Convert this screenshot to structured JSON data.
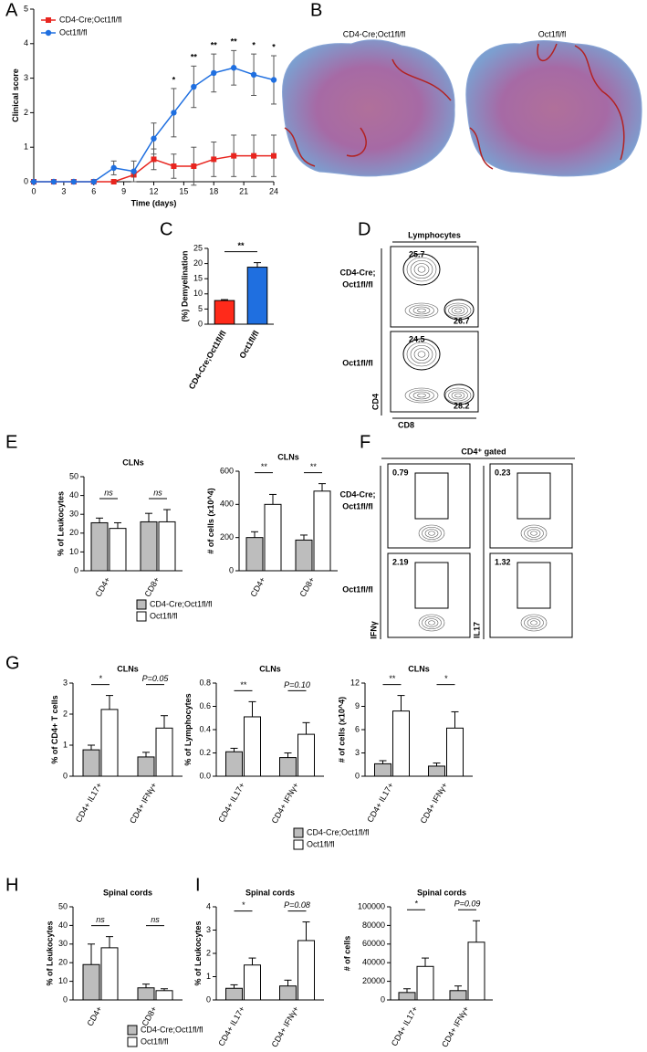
{
  "chart_data": [
    {
      "type": "line",
      "panel": "A",
      "x": [
        0,
        2,
        4,
        6,
        8,
        10,
        12,
        14,
        16,
        18,
        20,
        22,
        24
      ],
      "xlim": [
        0,
        24
      ],
      "xticks": [
        0,
        3,
        6,
        9,
        12,
        15,
        18,
        21,
        24
      ],
      "ylim": [
        0,
        5
      ],
      "yticks": [
        0,
        1,
        2,
        3,
        4,
        5
      ],
      "x_label": "Time (days)",
      "y_label": "Clinical score",
      "legend": "upper left",
      "series": [
        {
          "name": "CD4-Cre;Oct1fl/fl",
          "color": "#e8251f",
          "marker": "square",
          "values": [
            0,
            0,
            0,
            0,
            0,
            0.2,
            0.65,
            0.45,
            0.45,
            0.65,
            0.75,
            0.75,
            0.75
          ],
          "errors": [
            0,
            0,
            0,
            0,
            0,
            0.05,
            0.3,
            0.35,
            0.55,
            0.5,
            0.6,
            0.6,
            0.6
          ]
        },
        {
          "name": "Oct1fl/fl",
          "color": "#1f6fe0",
          "marker": "circle",
          "values": [
            0,
            0,
            0,
            0,
            0.4,
            0.3,
            1.25,
            2.0,
            2.75,
            3.15,
            3.3,
            3.1,
            2.95
          ],
          "errors": [
            0,
            0,
            0,
            0,
            0.2,
            0.3,
            0.45,
            0.7,
            0.6,
            0.55,
            0.5,
            0.6,
            0.7
          ]
        }
      ],
      "significance": [
        null,
        null,
        null,
        null,
        null,
        null,
        null,
        "*",
        "**",
        "**",
        "**",
        "*",
        "*"
      ]
    },
    {
      "type": "bar",
      "panel": "C",
      "categories": [
        "CD4-Cre;Oct1fl/fl",
        "Oct1fl/fl"
      ],
      "values": [
        7.8,
        18.8
      ],
      "errors": [
        0.3,
        1.5
      ],
      "colors": [
        "#ff2a1a",
        "#1f6fe0"
      ],
      "ylim": [
        0,
        25
      ],
      "yticks": [
        0,
        5,
        10,
        15,
        20,
        25
      ],
      "y_label": "(%) Demyelination",
      "significance": "**"
    },
    {
      "type": "bar",
      "panel": "E",
      "title": "CLNs",
      "categories": [
        "CD4+",
        "CD8+"
      ],
      "ylim": [
        0,
        50
      ],
      "yticks": [
        0,
        10,
        20,
        30,
        40,
        50
      ],
      "y_label": "% of Leukocytes",
      "significance": [
        "ns",
        "ns"
      ],
      "legend": true,
      "series": [
        {
          "name": "CD4-Cre;Oct1fl/fl",
          "color": "#bdbdbd",
          "values": [
            25.5,
            26
          ],
          "errors": [
            2.5,
            4.5
          ]
        },
        {
          "name": "Oct1fl/fl",
          "color": "#ffffff",
          "values": [
            22.5,
            26
          ],
          "errors": [
            3,
            6.5
          ]
        }
      ]
    },
    {
      "type": "bar",
      "title": "CLNs",
      "categories": [
        "CD4+",
        "CD8+"
      ],
      "ylim": [
        0,
        600
      ],
      "yticks": [
        0,
        200,
        400,
        600
      ],
      "y_label": "# of cells (x10^4)",
      "significance": [
        "**",
        "**"
      ],
      "series": [
        {
          "color": "#bdbdbd",
          "values": [
            200,
            185
          ],
          "errors": [
            35,
            30
          ]
        },
        {
          "color": "#ffffff",
          "values": [
            400,
            480
          ],
          "errors": [
            60,
            45
          ]
        }
      ]
    },
    {
      "type": "bar",
      "panel": "G",
      "title": "CLNs",
      "categories": [
        "CD4+ IL17+",
        "CD4+ IFNγ+"
      ],
      "ylim": [
        0,
        3
      ],
      "yticks": [
        0,
        1,
        2,
        3
      ],
      "y_label": "% of CD4+ T cells",
      "significance": [
        "*",
        "P=0.05"
      ],
      "series": [
        {
          "color": "#bdbdbd",
          "values": [
            0.85,
            0.62
          ],
          "errors": [
            0.15,
            0.15
          ]
        },
        {
          "color": "#ffffff",
          "values": [
            2.15,
            1.55
          ],
          "errors": [
            0.45,
            0.4
          ]
        }
      ]
    },
    {
      "type": "bar",
      "title": "CLNs",
      "categories": [
        "CD4+ IL17+",
        "CD4+ IFNγ+"
      ],
      "ylim": [
        0,
        0.8
      ],
      "yticks": [
        {
          "value": 0,
          "label": "0.0"
        },
        0.2,
        0.4,
        0.6,
        0.8
      ],
      "y_label": "% of Lymphocytes",
      "significance": [
        "**",
        "P=0.10"
      ],
      "legend": true,
      "series": [
        {
          "name": "CD4-Cre;Oct1fl/fl",
          "color": "#bdbdbd",
          "values": [
            0.21,
            0.16
          ],
          "errors": [
            0.03,
            0.04
          ]
        },
        {
          "name": "Oct1fl/fl",
          "color": "#ffffff",
          "values": [
            0.51,
            0.36
          ],
          "errors": [
            0.13,
            0.1
          ]
        }
      ]
    },
    {
      "type": "bar",
      "title": "CLNs",
      "categories": [
        "CD4+ IL17+",
        "CD4+ IFNγ+"
      ],
      "ylim": [
        0,
        12
      ],
      "yticks": [
        0,
        3,
        6,
        9,
        12
      ],
      "y_label": "# of cells (x10^4)",
      "significance": [
        "**",
        "*"
      ],
      "series": [
        {
          "color": "#bdbdbd",
          "values": [
            1.6,
            1.3
          ],
          "errors": [
            0.4,
            0.4
          ]
        },
        {
          "color": "#ffffff",
          "values": [
            8.4,
            6.2
          ],
          "errors": [
            2.0,
            2.1
          ]
        }
      ]
    },
    {
      "type": "bar",
      "panel": "H",
      "title": "Spinal cords",
      "categories": [
        "CD4+",
        "CD8+"
      ],
      "ylim": [
        0,
        50
      ],
      "yticks": [
        0,
        10,
        20,
        30,
        40,
        50
      ],
      "y_label": "% of Leukocytes",
      "significance": [
        "ns",
        "ns"
      ],
      "legend": true,
      "series": [
        {
          "name": "CD4-Cre;Oct1fl/fl",
          "color": "#bdbdbd",
          "values": [
            19,
            6.5
          ],
          "errors": [
            11,
            2
          ]
        },
        {
          "name": "Oct1fl/fl",
          "color": "#ffffff",
          "values": [
            28,
            5
          ],
          "errors": [
            6,
            1
          ]
        }
      ]
    },
    {
      "type": "bar",
      "panel": "I",
      "title": "Spinal cords",
      "categories": [
        "CD4+ IL17+",
        "CD4+ IFNγ+"
      ],
      "ylim": [
        0,
        4
      ],
      "yticks": [
        0,
        1,
        2,
        3,
        4
      ],
      "y_label": "% of Leukocytes",
      "significance": [
        "*",
        "P=0.08"
      ],
      "series": [
        {
          "color": "#bdbdbd",
          "values": [
            0.5,
            0.6
          ],
          "errors": [
            0.15,
            0.25
          ]
        },
        {
          "color": "#ffffff",
          "values": [
            1.5,
            2.55
          ],
          "errors": [
            0.3,
            0.8
          ]
        }
      ]
    },
    {
      "type": "bar",
      "title": "Spinal cords",
      "categories": [
        "CD4+ IL17+",
        "CD4+ IFNγ+"
      ],
      "ylim": [
        0,
        100000
      ],
      "yticks": [
        0,
        20000,
        40000,
        60000,
        80000,
        100000
      ],
      "y_label": "# of cells",
      "significance": [
        "*",
        "P=0.09"
      ],
      "series": [
        {
          "color": "#bdbdbd",
          "values": [
            8000,
            10000
          ],
          "errors": [
            4000,
            5000
          ]
        },
        {
          "color": "#ffffff",
          "values": [
            36000,
            62000
          ],
          "errors": [
            9000,
            23000
          ]
        }
      ]
    }
  ],
  "histology": {
    "panel": "B",
    "labels": [
      "CD4-Cre;Oct1fl/fl",
      "Oct1fl/fl"
    ]
  },
  "flow_D": {
    "panel": "D",
    "header": "Lymphocytes",
    "x_label": "CD8",
    "y_label": "CD4",
    "rows": [
      {
        "label": [
          "CD4-Cre;",
          "Oct1fl/fl"
        ],
        "gates": [
          25.7,
          26.7
        ]
      },
      {
        "label": [
          "Oct1fl/fl"
        ],
        "gates": [
          24.5,
          28.2
        ]
      }
    ]
  },
  "flow_F": {
    "panel": "F",
    "header": "CD4⁺ gated",
    "y_labels": [
      "IFNγ",
      "IL17"
    ],
    "rows": [
      {
        "label": [
          "CD4-Cre;",
          "Oct1fl/fl"
        ],
        "gates": [
          0.79,
          0.23
        ]
      },
      {
        "label": [
          "Oct1fl/fl"
        ],
        "gates": [
          2.19,
          1.32
        ]
      }
    ]
  }
}
